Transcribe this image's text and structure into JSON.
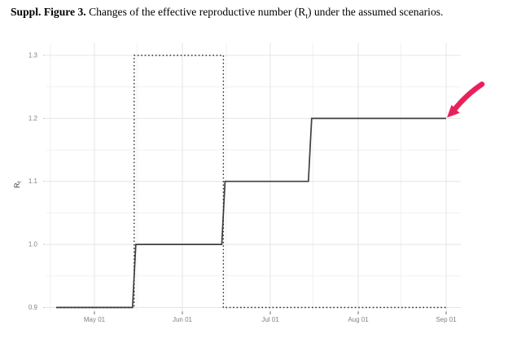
{
  "caption": {
    "bold": "Suppl. Figure 3.",
    "text_before_sub": " Changes of the effective reproductive number (R",
    "subscript": "t",
    "text_after_sub": ") under the assumed scenarios."
  },
  "chart_data": {
    "type": "line",
    "subtype": "step",
    "title": "",
    "xlabel": "",
    "ylabel": "Rt",
    "ylabel_parts": {
      "base": "R",
      "subscript": "t"
    },
    "x_ticks": [
      "May 01",
      "Jun 01",
      "Jul 01",
      "Aug 01",
      "Sep 01"
    ],
    "x_minor_ticks": [
      "Apr 16",
      "May 16",
      "Jun 16",
      "Jul 16",
      "Aug 16"
    ],
    "y_ticks": [
      "0.9",
      "1.0",
      "1.1",
      "1.2",
      "1.3"
    ],
    "y_minor_ticks": [
      0.95,
      1.05,
      1.15,
      1.25
    ],
    "ylim": [
      0.885,
      1.315
    ],
    "grid": true,
    "legend": "none",
    "series": [
      {
        "name": "solid-scenario-stepwise-increase",
        "line_style": "solid",
        "color": "#3f3f3f",
        "points": [
          [
            "Apr 18",
            0.9
          ],
          [
            "May 15",
            0.9
          ],
          [
            "May 15",
            1.0
          ],
          [
            "Jun 15",
            1.0
          ],
          [
            "Jun 15",
            1.1
          ],
          [
            "Jul 15",
            1.1
          ],
          [
            "Jul 15",
            1.2
          ],
          [
            "Sep 01",
            1.2
          ]
        ]
      },
      {
        "name": "dotted-scenario-temporary-peak",
        "line_style": "dotted",
        "color": "#2e2e2e",
        "points": [
          [
            "Apr 18",
            0.9
          ],
          [
            "May 15",
            0.9
          ],
          [
            "May 15",
            1.3
          ],
          [
            "Jun 15",
            1.3
          ],
          [
            "Jun 15",
            0.9
          ],
          [
            "Sep 01",
            0.9
          ]
        ]
      }
    ],
    "annotation": {
      "shape": "arrow",
      "color": "#e8215d",
      "points_at": [
        "Sep 01",
        1.2
      ],
      "meaning": "highlights solid scenario line ending at Rt = 1.2 on Sep 01"
    },
    "colors": {
      "grid_major": "#e4e4e4",
      "grid_minor": "#f1f1f1",
      "tick_label": "#828282",
      "axis_title": "#3a3a3a",
      "arrow": "#e8215d"
    }
  }
}
